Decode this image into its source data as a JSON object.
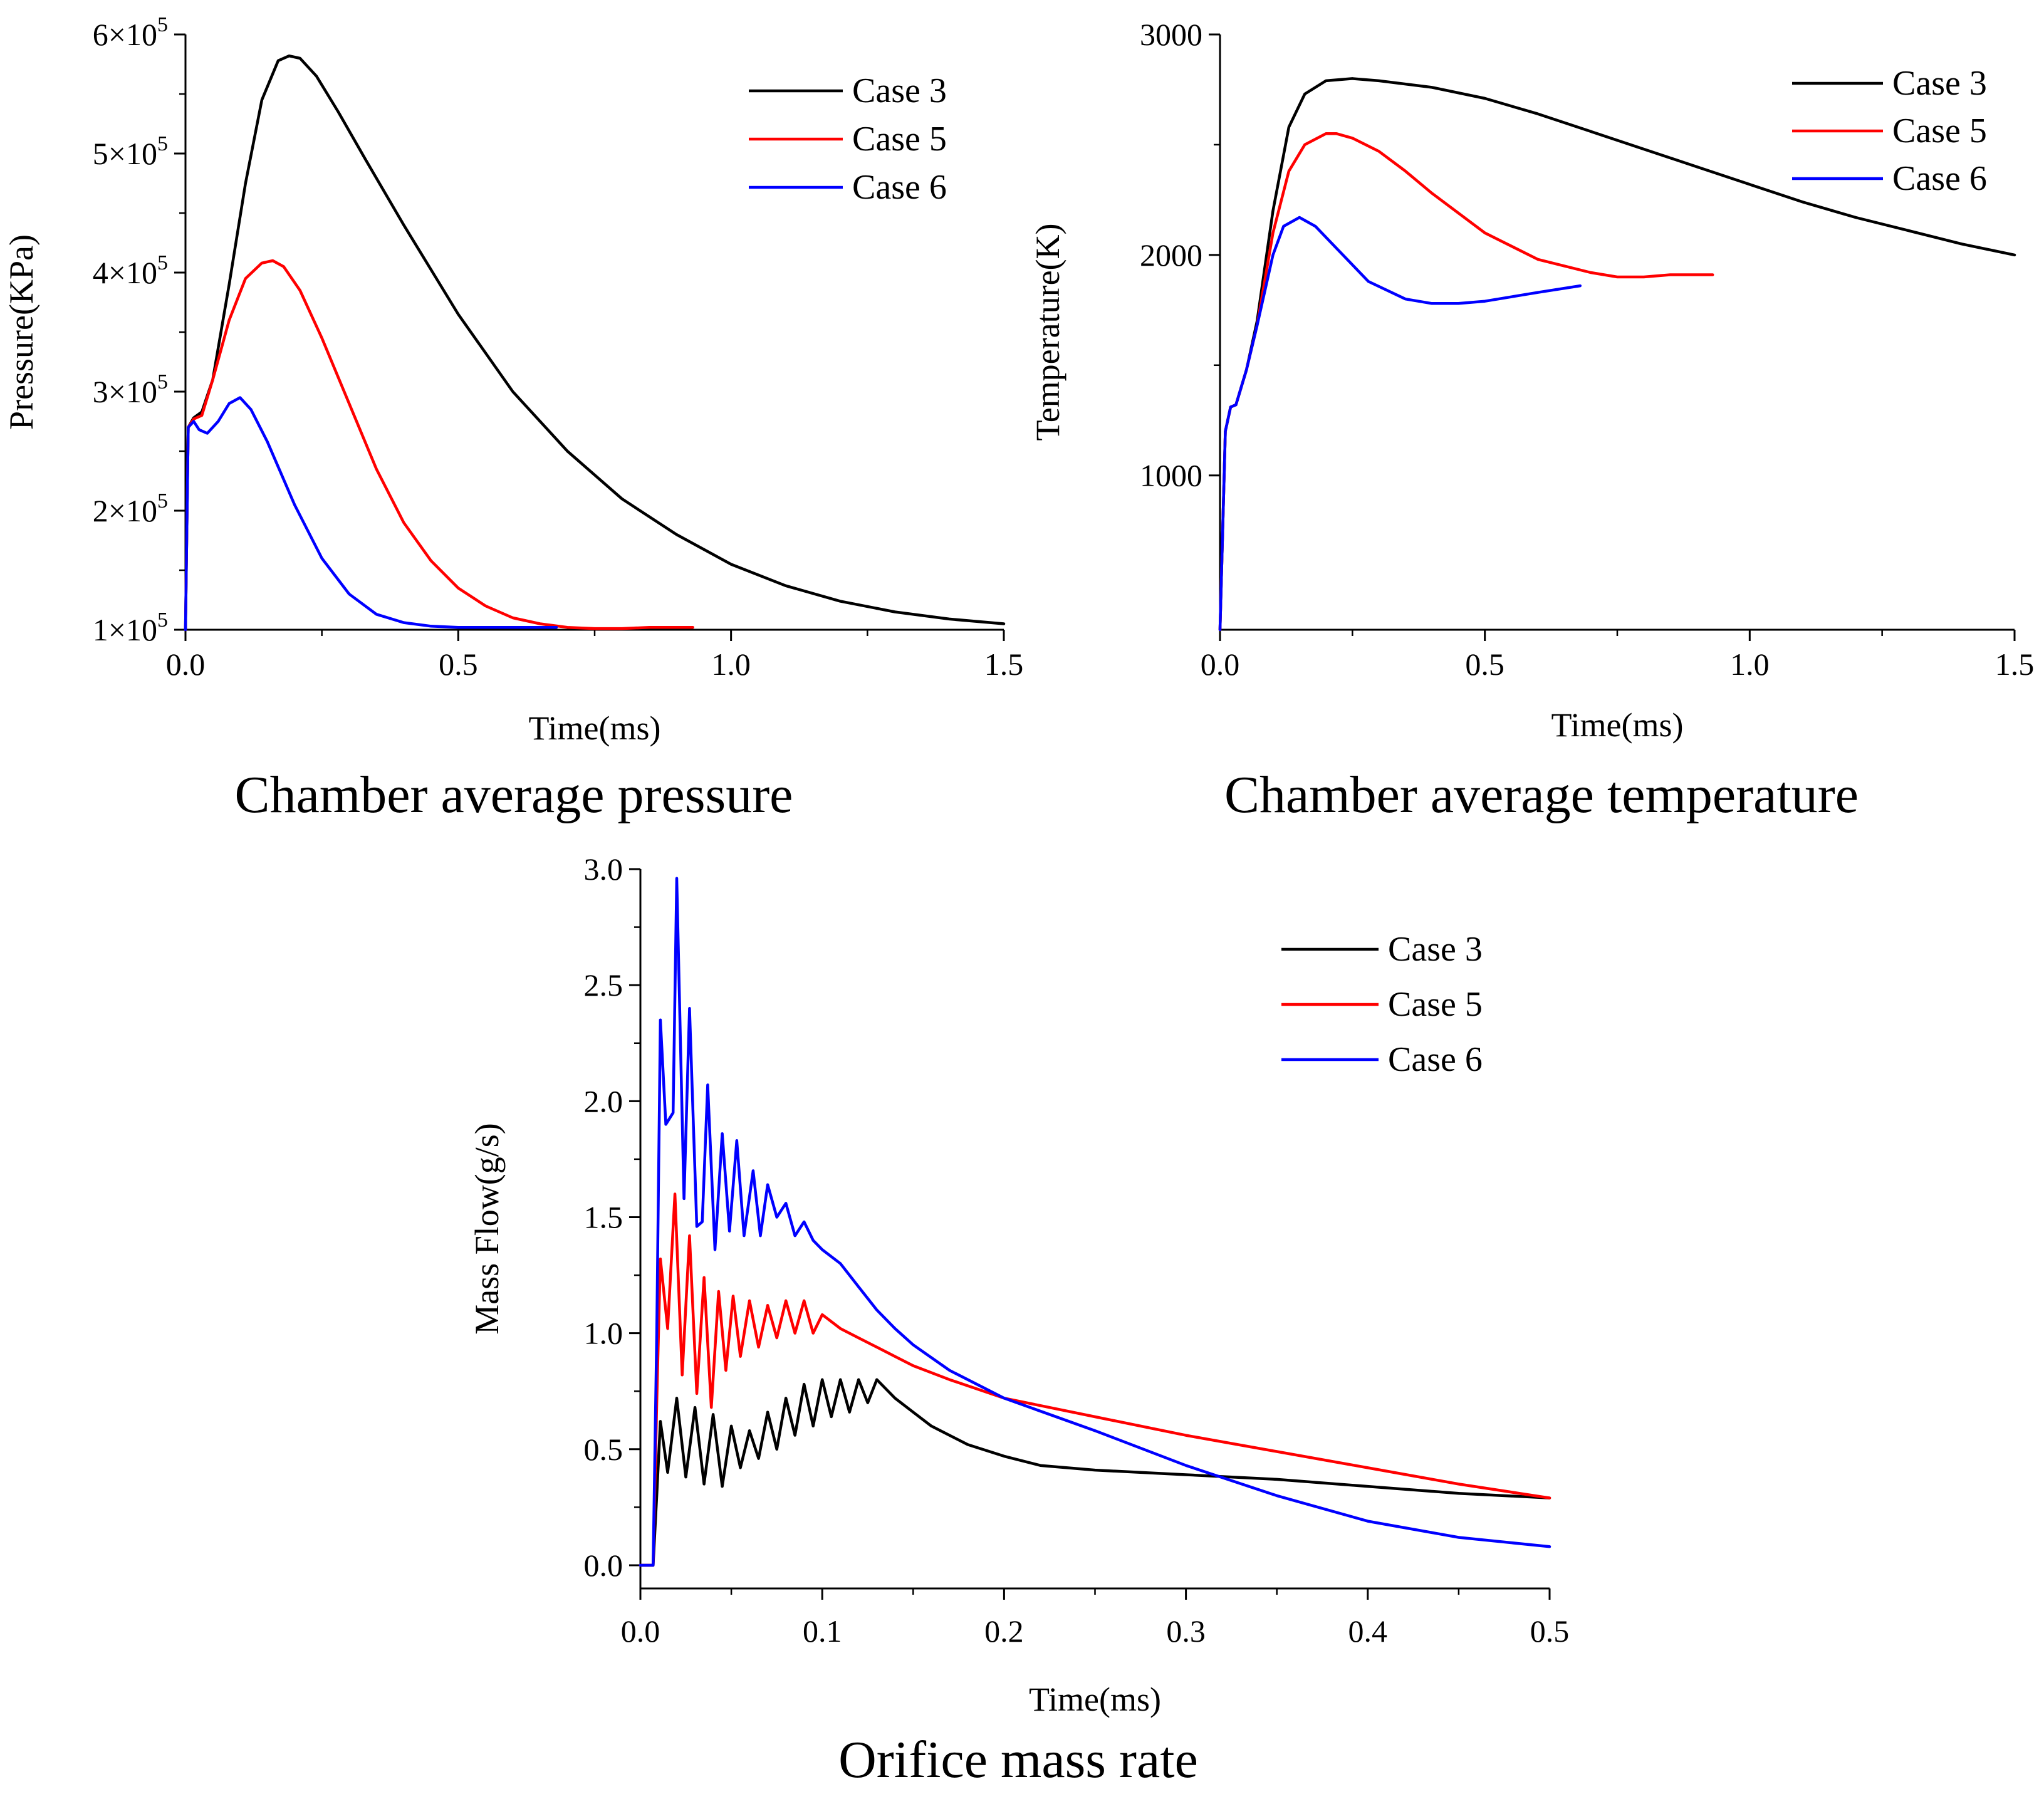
{
  "chart_data": [
    {
      "id": "pressure",
      "type": "line",
      "title": "Chamber average pressure",
      "xlabel": "Time(ms)",
      "ylabel": "Pressure(KPa)",
      "xlim": [
        0,
        1.5
      ],
      "ylim": [
        100000,
        600000
      ],
      "x_ticks": [
        0.0,
        0.5,
        1.0,
        1.5
      ],
      "x_tick_labels": [
        "0.0",
        "0.5",
        "1.0",
        "1.5"
      ],
      "y_ticks": [
        100000,
        200000,
        300000,
        400000,
        500000,
        600000
      ],
      "y_tick_labels": [
        {
          "mantissa": "1",
          "exp": "5"
        },
        {
          "mantissa": "2",
          "exp": "5"
        },
        {
          "mantissa": "3",
          "exp": "5"
        },
        {
          "mantissa": "4",
          "exp": "5"
        },
        {
          "mantissa": "5",
          "exp": "5"
        },
        {
          "mantissa": "6",
          "exp": "5"
        }
      ],
      "legend_position": "top-right",
      "series": [
        {
          "name": "Case 3",
          "color": "#000000",
          "x": [
            0,
            0.005,
            0.015,
            0.03,
            0.05,
            0.08,
            0.11,
            0.14,
            0.17,
            0.19,
            0.21,
            0.24,
            0.28,
            0.33,
            0.4,
            0.5,
            0.6,
            0.7,
            0.8,
            0.9,
            1.0,
            1.1,
            1.2,
            1.3,
            1.4,
            1.5
          ],
          "y": [
            100000,
            270000,
            278000,
            283000,
            310000,
            390000,
            475000,
            545000,
            578000,
            582000,
            580000,
            565000,
            535000,
            495000,
            440000,
            365000,
            300000,
            250000,
            210000,
            180000,
            155000,
            137000,
            124000,
            115000,
            109000,
            105000
          ]
        },
        {
          "name": "Case 5",
          "color": "#ff0000",
          "x": [
            0,
            0.005,
            0.015,
            0.03,
            0.05,
            0.08,
            0.11,
            0.14,
            0.16,
            0.18,
            0.21,
            0.25,
            0.3,
            0.35,
            0.4,
            0.45,
            0.5,
            0.55,
            0.6,
            0.65,
            0.7,
            0.75,
            0.8,
            0.85,
            0.93
          ],
          "y": [
            100000,
            270000,
            277000,
            280000,
            310000,
            360000,
            395000,
            408000,
            410000,
            405000,
            385000,
            345000,
            290000,
            235000,
            190000,
            158000,
            135000,
            120000,
            110000,
            105000,
            102000,
            101000,
            101000,
            102000,
            102000
          ]
        },
        {
          "name": "Case 6",
          "color": "#0000ff",
          "x": [
            0,
            0.005,
            0.015,
            0.025,
            0.04,
            0.06,
            0.08,
            0.1,
            0.12,
            0.15,
            0.2,
            0.25,
            0.3,
            0.35,
            0.4,
            0.45,
            0.5,
            0.6,
            0.68
          ],
          "y": [
            100000,
            270000,
            275000,
            268000,
            265000,
            275000,
            290000,
            295000,
            285000,
            258000,
            205000,
            160000,
            130000,
            113000,
            106000,
            103000,
            102000,
            102000,
            102000
          ]
        }
      ]
    },
    {
      "id": "temperature",
      "type": "line",
      "title": "Chamber average temperature",
      "xlabel": "Time(ms)",
      "ylabel": "Temperature(K)",
      "xlim": [
        0,
        1.5
      ],
      "ylim": [
        300,
        3000
      ],
      "x_ticks": [
        0.0,
        0.5,
        1.0,
        1.5
      ],
      "x_tick_labels": [
        "0.0",
        "0.5",
        "1.0",
        "1.5"
      ],
      "y_ticks": [
        1000,
        2000,
        3000
      ],
      "y_tick_labels": [
        "1000",
        "2000",
        "3000"
      ],
      "legend_position": "top-right",
      "series": [
        {
          "name": "Case 3",
          "color": "#000000",
          "x": [
            0,
            0.01,
            0.02,
            0.03,
            0.05,
            0.07,
            0.1,
            0.13,
            0.16,
            0.2,
            0.25,
            0.3,
            0.4,
            0.5,
            0.6,
            0.7,
            0.8,
            0.9,
            1.0,
            1.1,
            1.2,
            1.3,
            1.4,
            1.5
          ],
          "y": [
            300,
            1200,
            1310,
            1320,
            1480,
            1700,
            2200,
            2580,
            2730,
            2790,
            2800,
            2790,
            2760,
            2710,
            2640,
            2560,
            2480,
            2400,
            2320,
            2240,
            2170,
            2110,
            2050,
            2000
          ]
        },
        {
          "name": "Case 5",
          "color": "#ff0000",
          "x": [
            0,
            0.01,
            0.02,
            0.03,
            0.05,
            0.07,
            0.1,
            0.13,
            0.16,
            0.2,
            0.22,
            0.25,
            0.3,
            0.35,
            0.4,
            0.5,
            0.6,
            0.7,
            0.75,
            0.8,
            0.85,
            0.93
          ],
          "y": [
            300,
            1200,
            1310,
            1320,
            1480,
            1680,
            2100,
            2380,
            2500,
            2550,
            2550,
            2530,
            2470,
            2380,
            2280,
            2100,
            1980,
            1920,
            1900,
            1900,
            1910,
            1910
          ]
        },
        {
          "name": "Case 6",
          "color": "#0000ff",
          "x": [
            0,
            0.01,
            0.02,
            0.03,
            0.05,
            0.07,
            0.1,
            0.12,
            0.15,
            0.18,
            0.22,
            0.28,
            0.35,
            0.4,
            0.45,
            0.5,
            0.6,
            0.68
          ],
          "y": [
            300,
            1200,
            1310,
            1320,
            1480,
            1680,
            2000,
            2130,
            2170,
            2130,
            2030,
            1880,
            1800,
            1780,
            1780,
            1790,
            1830,
            1860
          ]
        }
      ]
    },
    {
      "id": "massflow",
      "type": "line",
      "title": "Orifice mass rate",
      "xlabel": "Time(ms)",
      "ylabel": "Mass Flow(g/s)",
      "xlim": [
        0,
        0.5
      ],
      "ylim": [
        -0.1,
        3.0
      ],
      "x_ticks": [
        0.0,
        0.1,
        0.2,
        0.3,
        0.4,
        0.5
      ],
      "x_tick_labels": [
        "0.0",
        "0.1",
        "0.2",
        "0.3",
        "0.4",
        "0.5"
      ],
      "y_ticks": [
        0.0,
        0.5,
        1.0,
        1.5,
        2.0,
        2.5,
        3.0
      ],
      "y_tick_labels": [
        "0.0",
        "0.5",
        "1.0",
        "1.5",
        "2.0",
        "2.5",
        "3.0"
      ],
      "legend_position": "top-right",
      "series": [
        {
          "name": "Case 3",
          "color": "#000000",
          "x": [
            0,
            0.007,
            0.009,
            0.011,
            0.015,
            0.02,
            0.025,
            0.03,
            0.035,
            0.04,
            0.045,
            0.05,
            0.055,
            0.06,
            0.065,
            0.07,
            0.075,
            0.08,
            0.085,
            0.09,
            0.095,
            0.1,
            0.105,
            0.11,
            0.115,
            0.12,
            0.125,
            0.13,
            0.14,
            0.15,
            0.16,
            0.18,
            0.2,
            0.22,
            0.25,
            0.3,
            0.35,
            0.4,
            0.45,
            0.5
          ],
          "y": [
            0,
            0,
            0.3,
            0.62,
            0.4,
            0.72,
            0.38,
            0.68,
            0.35,
            0.65,
            0.34,
            0.6,
            0.42,
            0.58,
            0.46,
            0.66,
            0.5,
            0.72,
            0.56,
            0.78,
            0.6,
            0.8,
            0.64,
            0.8,
            0.66,
            0.8,
            0.7,
            0.8,
            0.72,
            0.66,
            0.6,
            0.52,
            0.47,
            0.43,
            0.41,
            0.39,
            0.37,
            0.34,
            0.31,
            0.29
          ]
        },
        {
          "name": "Case 5",
          "color": "#ff0000",
          "x": [
            0,
            0.007,
            0.009,
            0.011,
            0.015,
            0.019,
            0.023,
            0.027,
            0.031,
            0.035,
            0.039,
            0.043,
            0.047,
            0.051,
            0.055,
            0.06,
            0.065,
            0.07,
            0.075,
            0.08,
            0.085,
            0.09,
            0.095,
            0.1,
            0.11,
            0.12,
            0.13,
            0.14,
            0.15,
            0.17,
            0.2,
            0.25,
            0.3,
            0.35,
            0.4,
            0.45,
            0.5
          ],
          "y": [
            0,
            0,
            0.7,
            1.32,
            1.02,
            1.6,
            0.82,
            1.42,
            0.74,
            1.24,
            0.68,
            1.18,
            0.84,
            1.16,
            0.9,
            1.14,
            0.94,
            1.12,
            0.98,
            1.14,
            1.0,
            1.14,
            1.0,
            1.08,
            1.02,
            0.98,
            0.94,
            0.9,
            0.86,
            0.8,
            0.72,
            0.64,
            0.56,
            0.49,
            0.42,
            0.35,
            0.29
          ]
        },
        {
          "name": "Case 6",
          "color": "#0000ff",
          "x": [
            0,
            0.007,
            0.009,
            0.011,
            0.014,
            0.018,
            0.02,
            0.024,
            0.027,
            0.031,
            0.034,
            0.037,
            0.041,
            0.045,
            0.049,
            0.053,
            0.057,
            0.062,
            0.066,
            0.07,
            0.075,
            0.08,
            0.085,
            0.09,
            0.095,
            0.1,
            0.11,
            0.12,
            0.13,
            0.14,
            0.15,
            0.17,
            0.2,
            0.25,
            0.3,
            0.35,
            0.4,
            0.45,
            0.5
          ],
          "y": [
            0,
            0,
            1.0,
            2.35,
            1.9,
            1.95,
            2.96,
            1.58,
            2.4,
            1.46,
            1.48,
            2.07,
            1.36,
            1.86,
            1.44,
            1.83,
            1.42,
            1.7,
            1.42,
            1.64,
            1.5,
            1.56,
            1.42,
            1.48,
            1.4,
            1.36,
            1.3,
            1.2,
            1.1,
            1.02,
            0.95,
            0.84,
            0.72,
            0.58,
            0.43,
            0.3,
            0.19,
            0.12,
            0.08
          ]
        }
      ]
    }
  ]
}
